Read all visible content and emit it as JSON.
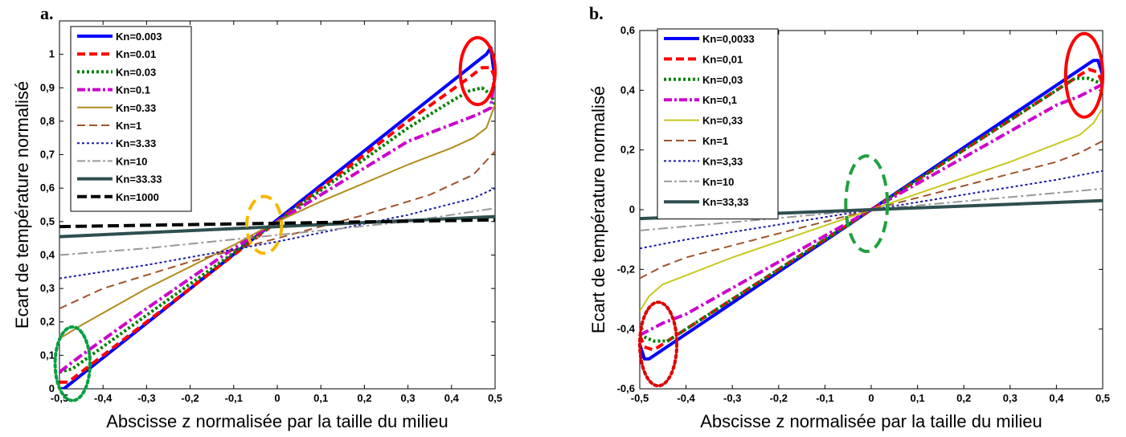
{
  "chart_data": [
    {
      "type": "line",
      "panel_label": "a.",
      "xlabel": "Abscisse z normalisée par la taille du milieu",
      "ylabel": "Ecart de température normalisé",
      "xlim": [
        -0.5,
        0.5
      ],
      "ylim": [
        0,
        1.1
      ],
      "xticks": [
        -0.5,
        -0.4,
        -0.3,
        -0.2,
        -0.1,
        0,
        0.1,
        0.2,
        0.3,
        0.4,
        0.5
      ],
      "xtick_labels": [
        "-0,5",
        "-0,4",
        "-0,3",
        "-0,2",
        "-0,1",
        "0",
        "0,1",
        "0,2",
        "0,3",
        "0,4",
        "0,5"
      ],
      "yticks": [
        0,
        0.1,
        0.2,
        0.3,
        0.4,
        0.5,
        0.6,
        0.7,
        0.8,
        0.9,
        1
      ],
      "ytick_labels": [
        "0",
        "0,1",
        "0,2",
        "0,3",
        "0,4",
        "0,5",
        "0,6",
        "0,7",
        "0,8",
        "0,9",
        "1"
      ],
      "legend_position": "top-left",
      "series": [
        {
          "name": "Kn=0.003",
          "color": "#0000ff",
          "dash": "solid",
          "width": 4,
          "x": [
            -0.5,
            -0.49,
            0.46,
            0.48,
            0.49,
            0.5
          ],
          "y": [
            0.0,
            0.0,
            0.98,
            1.0,
            1.02,
            0.92
          ]
        },
        {
          "name": "Kn=0.01",
          "color": "#ff0000",
          "dash": "dash",
          "width": 4,
          "x": [
            -0.5,
            -0.48,
            -0.3,
            0.0,
            0.3,
            0.44,
            0.47,
            0.49,
            0.5
          ],
          "y": [
            0.02,
            0.02,
            0.2,
            0.5,
            0.8,
            0.93,
            0.96,
            0.96,
            0.93
          ]
        },
        {
          "name": "Kn=0.03",
          "color": "#008000",
          "dash": "dot",
          "width": 4,
          "x": [
            -0.5,
            -0.47,
            -0.3,
            0.0,
            0.3,
            0.4,
            0.44,
            0.47,
            0.49,
            0.5
          ],
          "y": [
            0.05,
            0.06,
            0.22,
            0.5,
            0.78,
            0.86,
            0.89,
            0.9,
            0.88,
            0.85
          ]
        },
        {
          "name": "Kn=0.1",
          "color": "#cc00cc",
          "dash": "dashdot",
          "width": 4,
          "x": [
            -0.5,
            -0.45,
            -0.3,
            -0.1,
            0.0,
            0.1,
            0.3,
            0.4,
            0.46,
            0.49,
            0.5
          ],
          "y": [
            0.05,
            0.1,
            0.24,
            0.42,
            0.5,
            0.58,
            0.74,
            0.79,
            0.82,
            0.84,
            0.95
          ]
        },
        {
          "name": "Kn=0.33",
          "color": "#b08b1a",
          "dash": "solid",
          "width": 2,
          "x": [
            -0.5,
            -0.45,
            -0.3,
            -0.1,
            0.0,
            0.1,
            0.3,
            0.4,
            0.45,
            0.48,
            0.5
          ],
          "y": [
            0.15,
            0.19,
            0.3,
            0.43,
            0.5,
            0.56,
            0.67,
            0.72,
            0.75,
            0.78,
            0.85
          ]
        },
        {
          "name": "Kn=1",
          "color": "#a0522d",
          "dash": "dash",
          "width": 2,
          "x": [
            -0.5,
            -0.4,
            -0.2,
            0.0,
            0.2,
            0.35,
            0.45,
            0.5
          ],
          "y": [
            0.24,
            0.3,
            0.38,
            0.45,
            0.52,
            0.58,
            0.64,
            0.71
          ]
        },
        {
          "name": "Kn=3.33",
          "color": "#1a1aa6",
          "dash": "dot",
          "width": 2,
          "x": [
            -0.5,
            -0.3,
            0.0,
            0.3,
            0.45,
            0.5
          ],
          "y": [
            0.33,
            0.37,
            0.44,
            0.52,
            0.57,
            0.6
          ]
        },
        {
          "name": "Kn=10",
          "color": "#999999",
          "dash": "dashdot",
          "width": 2,
          "x": [
            -0.5,
            -0.3,
            0.0,
            0.3,
            0.5
          ],
          "y": [
            0.4,
            0.42,
            0.46,
            0.5,
            0.54
          ]
        },
        {
          "name": "Kn=33.33",
          "color": "#2f4f4f",
          "dash": "solid",
          "width": 4,
          "x": [
            -0.5,
            0.0,
            0.5
          ],
          "y": [
            0.455,
            0.485,
            0.515
          ]
        },
        {
          "name": "Kn=1000",
          "color": "#000000",
          "dash": "longdash",
          "width": 4,
          "x": [
            -0.5,
            0.0,
            0.5
          ],
          "y": [
            0.485,
            0.495,
            0.505
          ]
        }
      ],
      "annotations": [
        {
          "shape": "ellipse",
          "color": "#ff0000",
          "style": "solid",
          "cx": 0.46,
          "cy": 0.95,
          "rx": 0.04,
          "ry": 0.1
        },
        {
          "shape": "ellipse",
          "color": "#f5b800",
          "style": "dash",
          "cx": -0.03,
          "cy": 0.49,
          "rx": 0.04,
          "ry": 0.085
        },
        {
          "shape": "ellipse",
          "color": "#00a040",
          "style": "dot",
          "cx": -0.47,
          "cy": 0.075,
          "rx": 0.04,
          "ry": 0.11
        }
      ]
    },
    {
      "type": "line",
      "panel_label": "b.",
      "xlabel": "Abscisse z normalisée par la taille du milieu",
      "ylabel": "Ecart de température normalisé",
      "xlim": [
        -0.5,
        0.5
      ],
      "ylim": [
        -0.6,
        0.6
      ],
      "xticks": [
        -0.5,
        -0.4,
        -0.3,
        -0.2,
        -0.1,
        0,
        0.1,
        0.2,
        0.3,
        0.4,
        0.5
      ],
      "xtick_labels": [
        "-0,5",
        "-0,4",
        "-0,3",
        "-0,2",
        "-0,1",
        "0",
        "0,1",
        "0,2",
        "0,3",
        "0,4",
        "0,5"
      ],
      "yticks": [
        -0.6,
        -0.4,
        -0.2,
        0,
        0.2,
        0.4,
        0.6
      ],
      "ytick_labels": [
        "-0,6",
        "-0,4",
        "-0,2",
        "0",
        "0,2",
        "0,4",
        "0,6"
      ],
      "legend_position": "top-left",
      "series": [
        {
          "name": "Kn=0,0033",
          "color": "#0000ff",
          "dash": "solid",
          "width": 4,
          "x": [
            -0.5,
            -0.49,
            -0.48,
            0.48,
            0.49,
            0.5
          ],
          "y": [
            -0.45,
            -0.5,
            -0.5,
            0.5,
            0.5,
            0.45
          ]
        },
        {
          "name": "Kn=0,01",
          "color": "#ff0000",
          "dash": "dash",
          "width": 4,
          "x": [
            -0.5,
            -0.49,
            -0.47,
            0.0,
            0.47,
            0.49,
            0.5
          ],
          "y": [
            -0.42,
            -0.46,
            -0.47,
            0.0,
            0.47,
            0.46,
            0.42
          ]
        },
        {
          "name": "Kn=0,03",
          "color": "#008000",
          "dash": "dot",
          "width": 4,
          "x": [
            -0.5,
            -0.47,
            -0.44,
            0.0,
            0.44,
            0.47,
            0.5
          ],
          "y": [
            -0.42,
            -0.44,
            -0.44,
            0.0,
            0.44,
            0.44,
            0.42
          ]
        },
        {
          "name": "Kn=0,1",
          "color": "#cc00cc",
          "dash": "dashdot",
          "width": 4,
          "x": [
            -0.5,
            -0.45,
            -0.4,
            0.0,
            0.4,
            0.45,
            0.5
          ],
          "y": [
            -0.42,
            -0.38,
            -0.35,
            0.0,
            0.35,
            0.38,
            0.42
          ]
        },
        {
          "name": "Kn=0,33",
          "color": "#c8c820",
          "dash": "solid",
          "width": 2,
          "x": [
            -0.5,
            -0.48,
            -0.45,
            -0.4,
            -0.3,
            0.0,
            0.3,
            0.4,
            0.45,
            0.48,
            0.5
          ],
          "y": [
            -0.34,
            -0.29,
            -0.25,
            -0.22,
            -0.16,
            0.0,
            0.16,
            0.22,
            0.25,
            0.29,
            0.34
          ]
        },
        {
          "name": "Kn=1",
          "color": "#a0522d",
          "dash": "dash",
          "width": 2,
          "x": [
            -0.5,
            -0.45,
            -0.4,
            -0.2,
            0.0,
            0.2,
            0.4,
            0.45,
            0.5
          ],
          "y": [
            -0.23,
            -0.19,
            -0.16,
            -0.08,
            0.0,
            0.08,
            0.16,
            0.19,
            0.23
          ]
        },
        {
          "name": "Kn=3,33",
          "color": "#1a1aa6",
          "dash": "dot",
          "width": 2,
          "x": [
            -0.5,
            -0.4,
            0.0,
            0.4,
            0.5
          ],
          "y": [
            -0.13,
            -0.1,
            0.0,
            0.1,
            0.13
          ]
        },
        {
          "name": "Kn=10",
          "color": "#999999",
          "dash": "dashdot",
          "width": 2,
          "x": [
            -0.5,
            0.0,
            0.5
          ],
          "y": [
            -0.07,
            0.0,
            0.07
          ]
        },
        {
          "name": "Kn=33,33",
          "color": "#2f4f4f",
          "dash": "solid",
          "width": 4,
          "x": [
            -0.5,
            0.0,
            0.5
          ],
          "y": [
            -0.03,
            0.0,
            0.03
          ]
        }
      ],
      "annotations": [
        {
          "shape": "ellipse",
          "color": "#ff0000",
          "style": "solid",
          "cx": 0.46,
          "cy": 0.45,
          "rx": 0.04,
          "ry": 0.14
        },
        {
          "shape": "ellipse",
          "color": "#20a040",
          "style": "dash",
          "cx": -0.01,
          "cy": 0.02,
          "rx": 0.045,
          "ry": 0.16
        },
        {
          "shape": "ellipse",
          "color": "#dd0000",
          "style": "dot",
          "cx": -0.46,
          "cy": -0.45,
          "rx": 0.04,
          "ry": 0.14
        }
      ]
    }
  ]
}
